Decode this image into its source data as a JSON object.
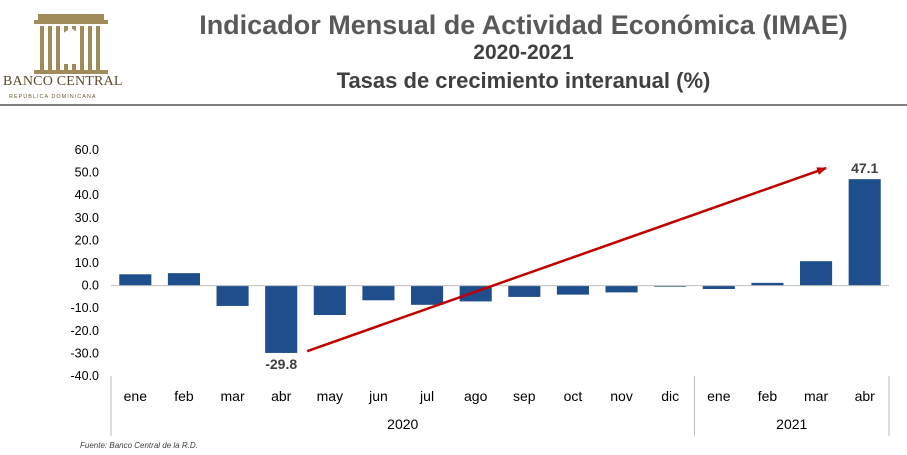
{
  "header": {
    "title": "Indicador Mensual de Actividad Económica (IMAE)",
    "period": "2020-2021",
    "subtitle": "Tasas de crecimiento interanual (%)"
  },
  "logo": {
    "name": "BANCO CENTRAL",
    "sub": "REPÚBLICA DOMINICANA"
  },
  "source": "Fuente: Banco Central de la R.D.",
  "colors": {
    "bar": "#1f4e8c",
    "arrow": "#c00000",
    "axis": "#bfbfbf"
  },
  "chart_data": {
    "type": "bar",
    "categories": [
      "ene",
      "feb",
      "mar",
      "abr",
      "may",
      "jun",
      "jul",
      "ago",
      "sep",
      "oct",
      "nov",
      "dic",
      "ene",
      "feb",
      "mar",
      "abr"
    ],
    "groups": [
      {
        "label": "2020",
        "start": 0,
        "end": 11
      },
      {
        "label": "2021",
        "start": 12,
        "end": 15
      }
    ],
    "values": [
      5.0,
      5.5,
      -9.0,
      -29.8,
      -13.0,
      -6.5,
      -8.5,
      -7.0,
      -5.0,
      -4.0,
      -3.0,
      -0.5,
      -1.5,
      1.2,
      10.8,
      47.1
    ],
    "data_labels": [
      {
        "index": 3,
        "text": "-29.8"
      },
      {
        "index": 15,
        "text": "47.1"
      }
    ],
    "y_ticks": [
      "60.0",
      "50.0",
      "40.0",
      "30.0",
      "20.0",
      "10.0",
      "0.0",
      "-10.0",
      "-20.0",
      "-30.0",
      "-40.0"
    ],
    "ylim": [
      -40,
      60
    ],
    "trend_arrow": {
      "from_index": 3,
      "from_value": -29.0,
      "to_index": 14,
      "to_value": 52.0
    },
    "grid": false,
    "legend": "none"
  }
}
